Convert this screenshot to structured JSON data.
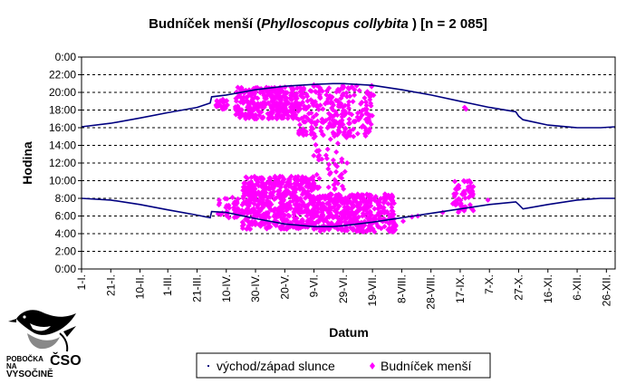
{
  "chart_data": {
    "type": "scatter",
    "title": {
      "prefix": "Budníček menší (",
      "italic": "Phylloscopus collybita",
      "suffix": " ) [n = 2 085]"
    },
    "xlabel": "Datum",
    "ylabel": "Hodina",
    "xlim": [
      0,
      365
    ],
    "ylim": [
      0,
      24
    ],
    "y_ticks": [
      "0:00",
      "2:00",
      "4:00",
      "6:00",
      "8:00",
      "10:00",
      "12:00",
      "14:00",
      "16:00",
      "18:00",
      "20:00",
      "22:00",
      "0:00"
    ],
    "x_ticks": [
      {
        "label": "1-I.",
        "day": 0
      },
      {
        "label": "21-I.",
        "day": 20
      },
      {
        "label": "10-II.",
        "day": 40
      },
      {
        "label": "1-III.",
        "day": 59
      },
      {
        "label": "21-III.",
        "day": 79
      },
      {
        "label": "10-IV.",
        "day": 99
      },
      {
        "label": "30-IV.",
        "day": 119
      },
      {
        "label": "20-V.",
        "day": 139
      },
      {
        "label": "9-VI.",
        "day": 159
      },
      {
        "label": "29-VI.",
        "day": 179
      },
      {
        "label": "19-VII.",
        "day": 199
      },
      {
        "label": "8-VIII.",
        "day": 219
      },
      {
        "label": "28-VIII.",
        "day": 239
      },
      {
        "label": "17-IX.",
        "day": 259
      },
      {
        "label": "7-X.",
        "day": 279
      },
      {
        "label": "27-X.",
        "day": 299
      },
      {
        "label": "16-XI.",
        "day": 319
      },
      {
        "label": "6-XII.",
        "day": 339
      },
      {
        "label": "26-XII.",
        "day": 359
      }
    ],
    "grid": "horizontal-dashed",
    "legend_position": "bottom",
    "series": [
      {
        "name": "východ/západ slunce",
        "kind": "line",
        "color": "#000080",
        "sunset": [
          [
            0,
            16.1
          ],
          [
            20,
            16.5
          ],
          [
            40,
            17.1
          ],
          [
            59,
            17.7
          ],
          [
            79,
            18.3
          ],
          [
            88,
            18.8
          ],
          [
            89,
            19.5
          ],
          [
            99,
            19.7
          ],
          [
            119,
            20.3
          ],
          [
            139,
            20.7
          ],
          [
            159,
            20.9
          ],
          [
            172,
            21.0
          ],
          [
            179,
            21.0
          ],
          [
            199,
            20.8
          ],
          [
            219,
            20.3
          ],
          [
            239,
            19.7
          ],
          [
            259,
            19.0
          ],
          [
            279,
            18.3
          ],
          [
            297,
            17.8
          ],
          [
            299,
            17.3
          ],
          [
            302,
            16.9
          ],
          [
            319,
            16.3
          ],
          [
            339,
            16.0
          ],
          [
            355,
            16.0
          ],
          [
            365,
            16.1
          ]
        ],
        "sunrise": [
          [
            0,
            8.0
          ],
          [
            20,
            7.8
          ],
          [
            40,
            7.3
          ],
          [
            59,
            6.7
          ],
          [
            79,
            6.1
          ],
          [
            88,
            5.8
          ],
          [
            89,
            6.5
          ],
          [
            99,
            6.4
          ],
          [
            119,
            5.7
          ],
          [
            139,
            5.1
          ],
          [
            159,
            4.8
          ],
          [
            172,
            4.8
          ],
          [
            179,
            4.9
          ],
          [
            199,
            5.3
          ],
          [
            219,
            5.8
          ],
          [
            239,
            6.3
          ],
          [
            259,
            6.8
          ],
          [
            279,
            7.3
          ],
          [
            297,
            7.6
          ],
          [
            299,
            7.3
          ],
          [
            302,
            6.8
          ],
          [
            319,
            7.3
          ],
          [
            339,
            7.8
          ],
          [
            355,
            8.0
          ],
          [
            365,
            8.0
          ]
        ]
      },
      {
        "name": "Budníček menší",
        "kind": "points",
        "color": "#ff00ff",
        "clusters": [
          {
            "x": [
              91,
              100
            ],
            "y": [
              18.0,
              19.2
            ],
            "n": 25
          },
          {
            "x": [
              105,
              148
            ],
            "y": [
              17.0,
              20.6
            ],
            "n": 320
          },
          {
            "x": [
              148,
              200
            ],
            "y": [
              15.0,
              21.0
            ],
            "n": 250
          },
          {
            "x": [
              158,
              182
            ],
            "y": [
              9.0,
              17.0
            ],
            "n": 70
          },
          {
            "x": [
              92,
              110
            ],
            "y": [
              5.8,
              8.2
            ],
            "n": 40
          },
          {
            "x": [
              110,
              160
            ],
            "y": [
              4.5,
              10.5
            ],
            "n": 560
          },
          {
            "x": [
              160,
              215
            ],
            "y": [
              4.2,
              8.5
            ],
            "n": 420
          },
          {
            "x": [
              254,
              268
            ],
            "y": [
              6.4,
              10.0
            ],
            "n": 60
          }
        ],
        "points": [
          [
            220,
            5.4
          ],
          [
            226,
            5.9
          ],
          [
            230,
            6.0
          ],
          [
            247,
            6.4
          ],
          [
            278,
            7.8
          ],
          [
            262,
            18.3
          ],
          [
            263,
            18.1
          ]
        ]
      }
    ]
  },
  "logo": {
    "line1": "POBOČKA",
    "big": "ČSO",
    "line2": "NA",
    "line3": "VYSOČINĚ"
  }
}
